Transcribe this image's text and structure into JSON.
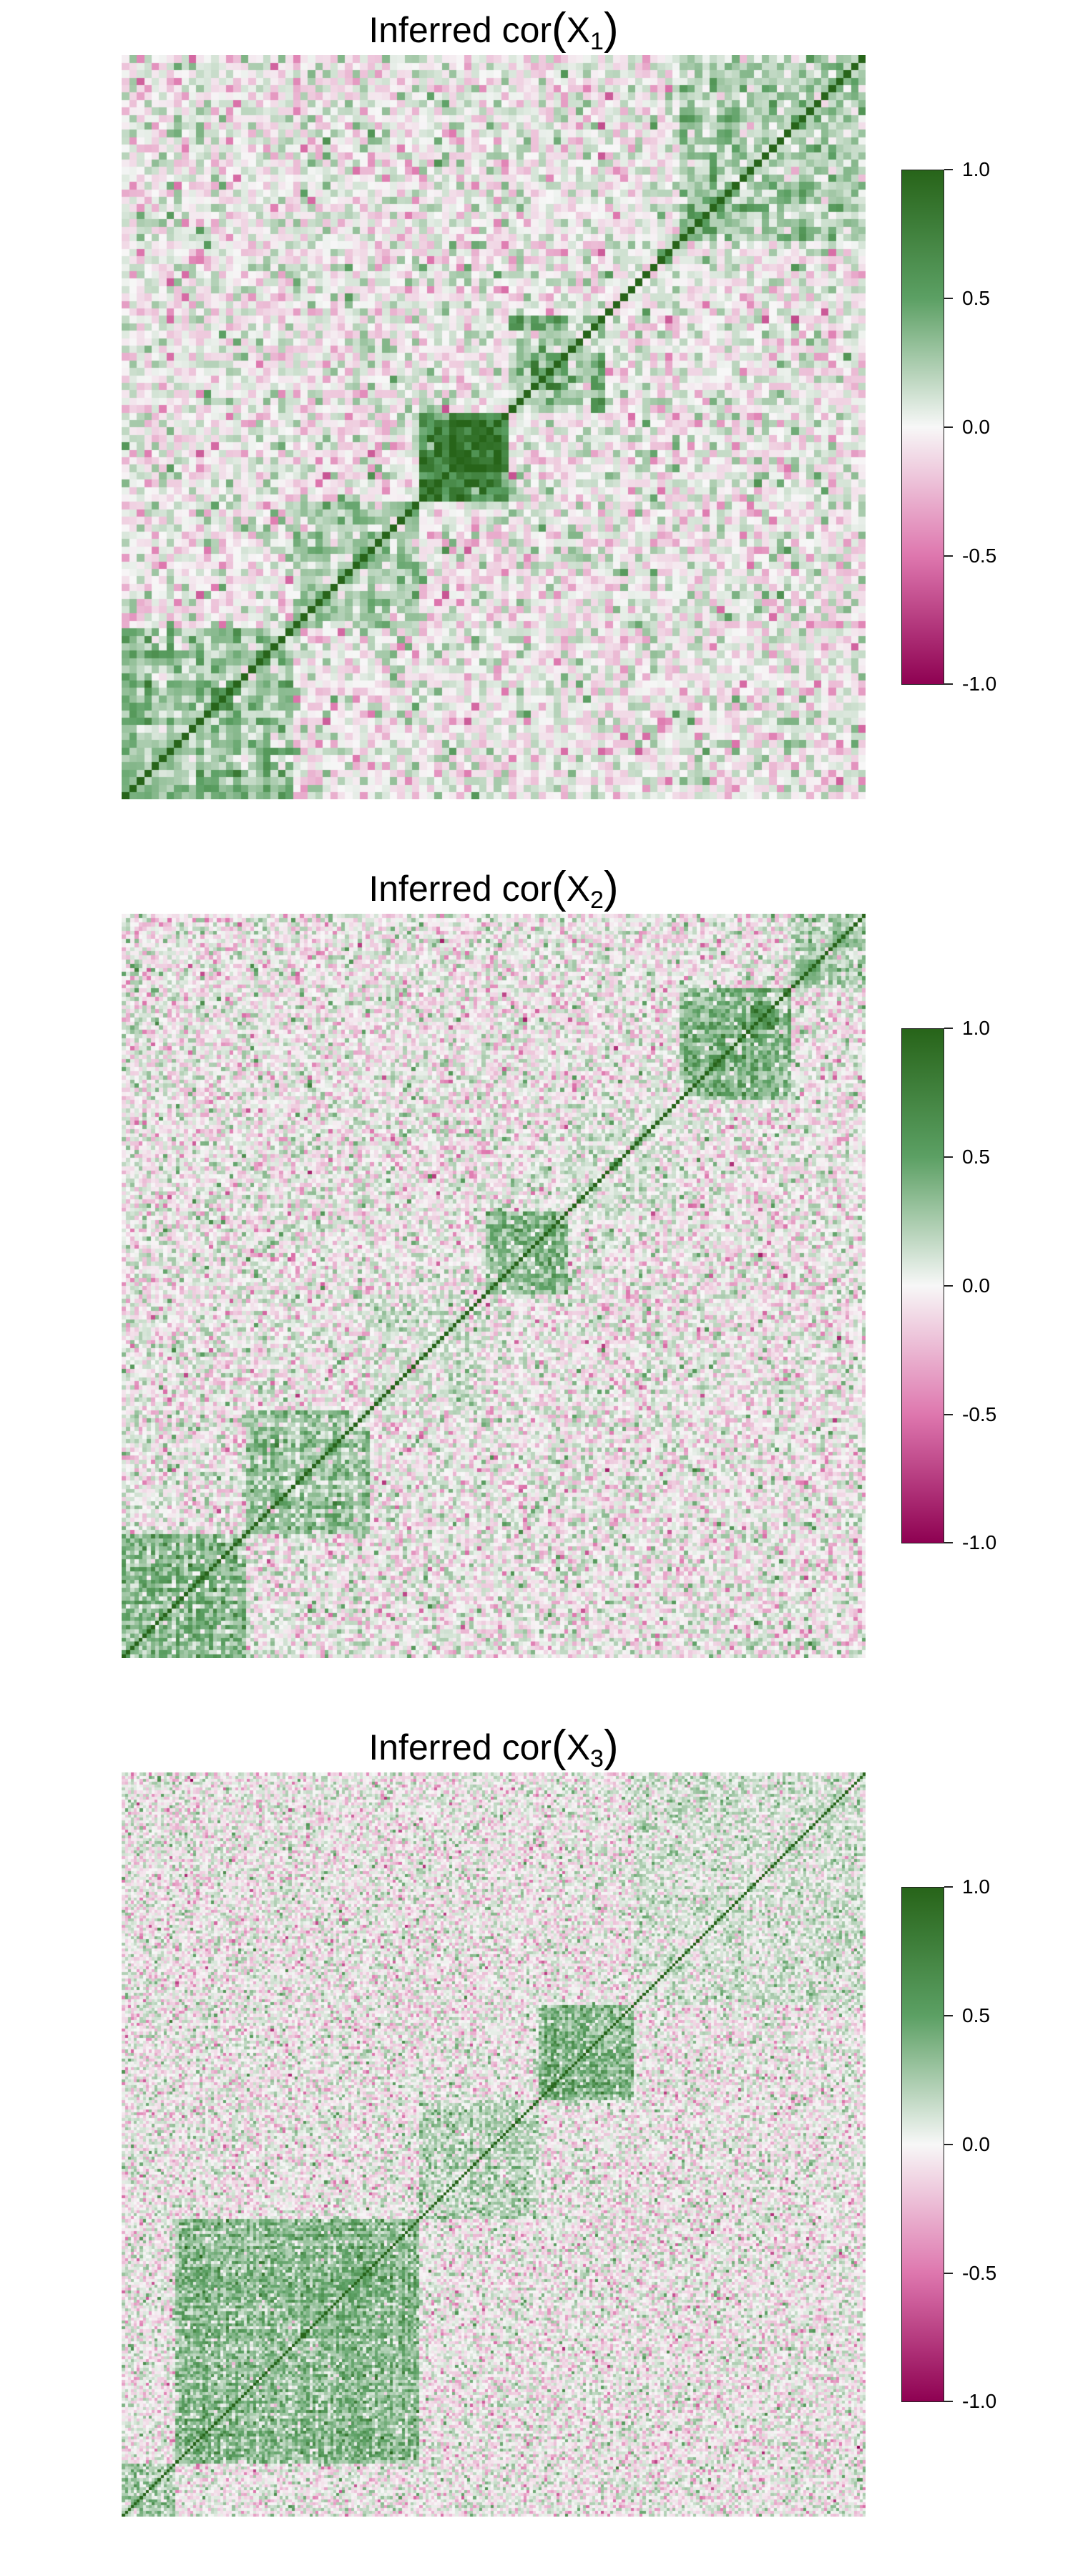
{
  "chart_data": [
    {
      "type": "heatmap",
      "title": "Inferred cor(X₁)",
      "title_base": "Inferred cor",
      "title_open": "(",
      "title_var": "X",
      "title_sub": "1",
      "title_close": ")",
      "n_vars": 100,
      "blocks": [
        {
          "start": 0,
          "end": 23,
          "value": 0.45
        },
        {
          "start": 23,
          "end": 40,
          "value": 0.35
        },
        {
          "start": 40,
          "end": 52,
          "value": 0.9
        },
        {
          "start": 52,
          "end": 65,
          "value": 0.45
        },
        {
          "start": 65,
          "end": 75,
          "value": 0.1
        },
        {
          "start": 75,
          "end": 100,
          "value": 0.35
        }
      ],
      "colorbar": {
        "min": -1.0,
        "max": 1.0,
        "ticks": [
          "1.0",
          "0.5",
          "0.0",
          "-0.5",
          "-1.0"
        ],
        "tick_values": [
          1.0,
          0.5,
          0.0,
          -0.5,
          -1.0
        ]
      },
      "diagonal": 1.0
    },
    {
      "type": "heatmap",
      "title": "Inferred cor(X₂)",
      "title_base": "Inferred cor",
      "title_open": "(",
      "title_var": "X",
      "title_sub": "2",
      "title_close": ")",
      "n_vars": 180,
      "blocks": [
        {
          "start": 0,
          "end": 30,
          "value": 0.5
        },
        {
          "start": 30,
          "end": 60,
          "value": 0.4
        },
        {
          "start": 60,
          "end": 88,
          "value": 0.1
        },
        {
          "start": 88,
          "end": 108,
          "value": 0.45
        },
        {
          "start": 108,
          "end": 135,
          "value": 0.1
        },
        {
          "start": 135,
          "end": 162,
          "value": 0.55
        },
        {
          "start": 162,
          "end": 180,
          "value": 0.35
        }
      ],
      "colorbar": {
        "min": -1.0,
        "max": 1.0,
        "ticks": [
          "1.0",
          "0.5",
          "0.0",
          "-0.5",
          "-1.0"
        ],
        "tick_values": [
          1.0,
          0.5,
          0.0,
          -0.5,
          -1.0
        ]
      },
      "diagonal": 1.0
    },
    {
      "type": "heatmap",
      "title": "Inferred cor(X₃)",
      "title_base": "Inferred cor",
      "title_open": "(",
      "title_var": "X",
      "title_sub": "3",
      "title_close": ")",
      "n_vars": 250,
      "blocks": [
        {
          "start": 0,
          "end": 18,
          "value": 0.3
        },
        {
          "start": 18,
          "end": 100,
          "value": 0.45
        },
        {
          "start": 100,
          "end": 140,
          "value": 0.25
        },
        {
          "start": 140,
          "end": 172,
          "value": 0.55
        },
        {
          "start": 172,
          "end": 250,
          "value": 0.15
        }
      ],
      "colorbar": {
        "min": -1.0,
        "max": 1.0,
        "ticks": [
          "1.0",
          "0.5",
          "0.0",
          "-0.5",
          "-1.0"
        ],
        "tick_values": [
          1.0,
          0.5,
          0.0,
          -0.5,
          -1.0
        ]
      },
      "diagonal": 1.0
    }
  ],
  "palette": {
    "negative": "#8e0152",
    "negative_mid": "#c51b7d",
    "zero": "#f7f7f7",
    "positive_mid": "#4d9221",
    "positive": "#276419"
  }
}
